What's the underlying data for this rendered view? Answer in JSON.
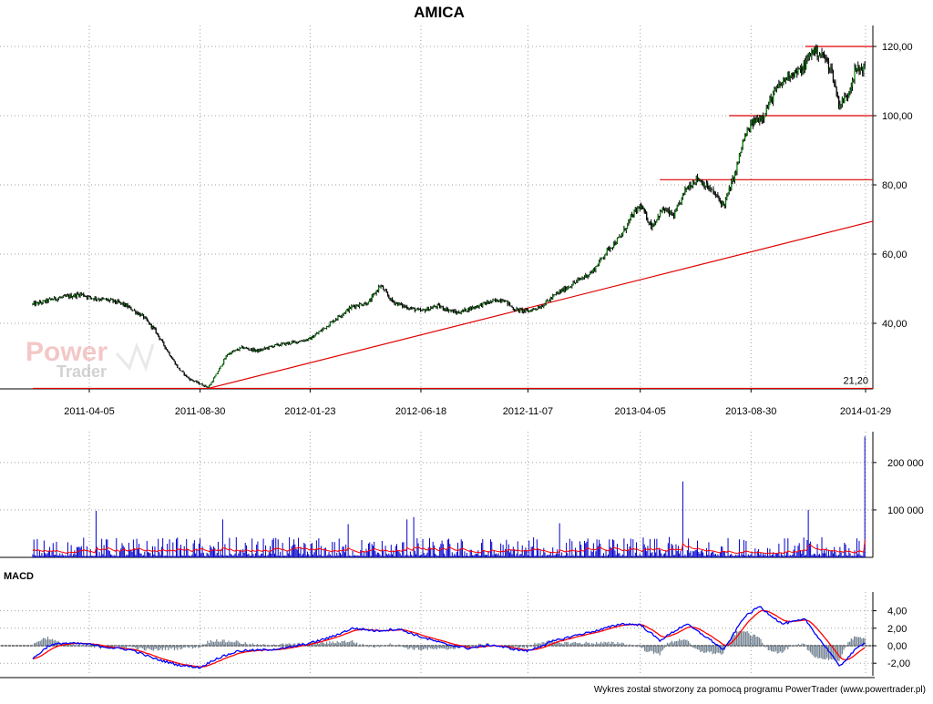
{
  "title": "AMICA",
  "footer": "Wykres został stworzony za pomocą programu PowerTrader (www.powertrader.pl)",
  "watermark": {
    "line1": "Power",
    "line2": "Trader"
  },
  "colors": {
    "candle_up": "#008000",
    "candle_down": "#000000",
    "support": "#e00000",
    "volume": "#0000cc",
    "volume_avg": "#ff0000",
    "macd": "#0000ff",
    "signal": "#ff0000",
    "histogram": "#708090",
    "grid": "#a0a0a0"
  },
  "chart_data": [
    {
      "type": "line",
      "name": "price",
      "xlabels": [
        "2011-04-05",
        "2011-08-30",
        "2012-01-23",
        "2012-06-18",
        "2012-11-07",
        "2013-04-05",
        "2013-08-30",
        "2014-01-29"
      ],
      "ylabels": [
        "40,00",
        "60,00",
        "80,00",
        "100,00",
        "120,00"
      ],
      "ylim": [
        20,
        125
      ],
      "grid": true,
      "min_label": "21,20",
      "price_path": [
        [
          "2011-01-20",
          45.5
        ],
        [
          "2011-02-01",
          46.0
        ],
        [
          "2011-02-15",
          47.0
        ],
        [
          "2011-03-01",
          47.5
        ],
        [
          "2011-03-15",
          48.0
        ],
        [
          "2011-03-25",
          48.5
        ],
        [
          "2011-04-05",
          47.5
        ],
        [
          "2011-04-20",
          47.0
        ],
        [
          "2011-05-05",
          46.5
        ],
        [
          "2011-05-20",
          45.5
        ],
        [
          "2011-06-01",
          44.0
        ],
        [
          "2011-06-15",
          42.0
        ],
        [
          "2011-07-01",
          38.0
        ],
        [
          "2011-07-15",
          33.0
        ],
        [
          "2011-08-01",
          27.0
        ],
        [
          "2011-08-15",
          24.0
        ],
        [
          "2011-08-30",
          22.5
        ],
        [
          "2011-09-10",
          21.5
        ],
        [
          "2011-09-20",
          25.0
        ],
        [
          "2011-10-05",
          31.0
        ],
        [
          "2011-10-25",
          33.0
        ],
        [
          "2011-11-15",
          32.0
        ],
        [
          "2011-12-05",
          33.5
        ],
        [
          "2012-01-01",
          34.5
        ],
        [
          "2012-01-23",
          35.5
        ],
        [
          "2012-02-10",
          38.5
        ],
        [
          "2012-03-01",
          42.0
        ],
        [
          "2012-03-20",
          45.0
        ],
        [
          "2012-04-10",
          46.0
        ],
        [
          "2012-04-25",
          51.0
        ],
        [
          "2012-05-10",
          46.5
        ],
        [
          "2012-05-25",
          45.0
        ],
        [
          "2012-06-18",
          43.5
        ],
        [
          "2012-07-10",
          45.0
        ],
        [
          "2012-08-05",
          43.0
        ],
        [
          "2012-08-25",
          44.5
        ],
        [
          "2012-09-15",
          46.0
        ],
        [
          "2012-10-05",
          47.0
        ],
        [
          "2012-10-20",
          44.0
        ],
        [
          "2012-11-07",
          43.5
        ],
        [
          "2012-11-25",
          45.0
        ],
        [
          "2012-12-15",
          48.5
        ],
        [
          "2013-01-10",
          52.0
        ],
        [
          "2013-02-01",
          55.0
        ],
        [
          "2013-02-20",
          61.0
        ],
        [
          "2013-03-10",
          65.0
        ],
        [
          "2013-03-25",
          71.0
        ],
        [
          "2013-04-05",
          74.0
        ],
        [
          "2013-04-20",
          68.0
        ],
        [
          "2013-05-05",
          73.0
        ],
        [
          "2013-05-20",
          71.0
        ],
        [
          "2013-06-05",
          79.0
        ],
        [
          "2013-06-20",
          82.0
        ],
        [
          "2013-07-10",
          78.0
        ],
        [
          "2013-07-25",
          74.0
        ],
        [
          "2013-08-10",
          84.0
        ],
        [
          "2013-08-20",
          93.0
        ],
        [
          "2013-09-01",
          98.0
        ],
        [
          "2013-09-15",
          100.0
        ],
        [
          "2013-10-01",
          107.0
        ],
        [
          "2013-10-20",
          112.0
        ],
        [
          "2013-11-05",
          113.0
        ],
        [
          "2013-11-20",
          119.0
        ],
        [
          "2013-12-05",
          117.0
        ],
        [
          "2013-12-15",
          113.0
        ],
        [
          "2013-12-25",
          103.0
        ],
        [
          "2014-01-05",
          106.0
        ],
        [
          "2014-01-15",
          113.0
        ],
        [
          "2014-01-29",
          114.0
        ]
      ],
      "support_lines": [
        {
          "from": "2013-11-10",
          "to": "2014-02-10",
          "value": 120.0
        },
        {
          "from": "2013-08-01",
          "to": "2014-02-10",
          "value": 100.0
        },
        {
          "from": "2013-05-01",
          "to": "2014-02-10",
          "value": 81.5
        },
        {
          "from": "2011-01-20",
          "to": "2014-02-10",
          "value": 21.2
        }
      ],
      "trendline": {
        "from": [
          "2011-09-10",
          21.2
        ],
        "to": [
          "2014-02-10",
          69.5
        ]
      }
    },
    {
      "type": "bar",
      "name": "volume",
      "ylabels": [
        "100 000",
        "200 000"
      ],
      "ylim": [
        0,
        270000
      ],
      "spikes": [
        [
          "2011-04-15",
          98000
        ],
        [
          "2011-09-30",
          80000
        ],
        [
          "2012-03-15",
          70000
        ],
        [
          "2012-06-01",
          80000
        ],
        [
          "2012-06-10",
          85000
        ],
        [
          "2012-12-20",
          72000
        ],
        [
          "2013-06-01",
          160000
        ],
        [
          "2013-11-15",
          100000
        ],
        [
          "2014-01-29",
          255000
        ]
      ],
      "avg_level": 15000
    },
    {
      "type": "line",
      "name": "MACD",
      "label": "MACD",
      "ylabels": [
        "-2,00",
        "0,00",
        "2,00",
        "4,00"
      ],
      "ylim": [
        -3.5,
        5.5
      ],
      "macd_path": [
        [
          "2011-01-20",
          -1.5
        ],
        [
          "2011-02-10",
          0.0
        ],
        [
          "2011-03-01",
          0.3
        ],
        [
          "2011-04-01",
          0.2
        ],
        [
          "2011-05-01",
          -0.2
        ],
        [
          "2011-06-01",
          -0.5
        ],
        [
          "2011-07-01",
          -1.5
        ],
        [
          "2011-08-01",
          -2.2
        ],
        [
          "2011-08-30",
          -2.5
        ],
        [
          "2011-09-20",
          -1.5
        ],
        [
          "2011-10-20",
          -0.6
        ],
        [
          "2011-11-20",
          -0.5
        ],
        [
          "2011-12-20",
          -0.3
        ],
        [
          "2012-01-23",
          0.3
        ],
        [
          "2012-02-20",
          1.0
        ],
        [
          "2012-03-20",
          2.0
        ],
        [
          "2012-04-20",
          1.7
        ],
        [
          "2012-05-20",
          1.9
        ],
        [
          "2012-06-18",
          1.0
        ],
        [
          "2012-07-20",
          0.2
        ],
        [
          "2012-08-20",
          -0.3
        ],
        [
          "2012-09-20",
          0.1
        ],
        [
          "2012-10-20",
          -0.4
        ],
        [
          "2012-11-07",
          -0.6
        ],
        [
          "2012-12-10",
          0.5
        ],
        [
          "2013-01-10",
          1.2
        ],
        [
          "2013-02-10",
          1.8
        ],
        [
          "2013-03-10",
          2.5
        ],
        [
          "2013-04-05",
          2.4
        ],
        [
          "2013-05-01",
          0.6
        ],
        [
          "2013-06-05",
          2.5
        ],
        [
          "2013-07-05",
          0.8
        ],
        [
          "2013-07-25",
          -0.5
        ],
        [
          "2013-08-20",
          3.2
        ],
        [
          "2013-09-10",
          4.5
        ],
        [
          "2013-10-10",
          2.5
        ],
        [
          "2013-11-10",
          3.0
        ],
        [
          "2013-12-01",
          0.5
        ],
        [
          "2013-12-15",
          -1.0
        ],
        [
          "2013-12-25",
          -2.4
        ],
        [
          "2014-01-15",
          -0.5
        ],
        [
          "2014-01-29",
          0.5
        ]
      ]
    }
  ]
}
